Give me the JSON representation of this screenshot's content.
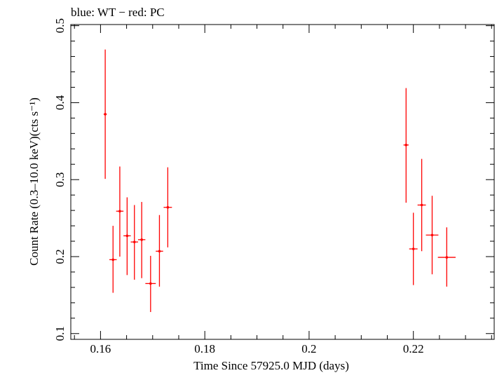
{
  "chart_data": {
    "type": "scatter",
    "title": "blue: WT − red: PC",
    "xlabel": "Time Since 57925.0 MJD (days)",
    "ylabel": "Count Rate (0.3–10.0 keV)(cts s⁻¹)",
    "xlim": [
      0.1543,
      0.2355
    ],
    "ylim": [
      0.0925,
      0.5015
    ],
    "x_ticks": [
      0.16,
      0.18,
      0.2,
      0.22
    ],
    "x_tick_labels": [
      "0.16",
      "0.18",
      "0.2",
      "0.22"
    ],
    "y_ticks": [
      0.1,
      0.2,
      0.3,
      0.4,
      0.5
    ],
    "y_tick_labels": [
      "0.1",
      "0.2",
      "0.3",
      "0.4",
      "0.5"
    ],
    "grid": false,
    "series": [
      {
        "color": "#ff0000",
        "points": [
          {
            "x": 0.1609,
            "y": 0.385,
            "xerr": 0.0003,
            "ylo": 0.301,
            "yhi": 0.469
          },
          {
            "x": 0.1624,
            "y": 0.196,
            "xerr": 0.0007,
            "ylo": 0.153,
            "yhi": 0.24
          },
          {
            "x": 0.1637,
            "y": 0.259,
            "xerr": 0.0007,
            "ylo": 0.2,
            "yhi": 0.317
          },
          {
            "x": 0.1651,
            "y": 0.227,
            "xerr": 0.0007,
            "ylo": 0.176,
            "yhi": 0.277
          },
          {
            "x": 0.1665,
            "y": 0.219,
            "xerr": 0.0007,
            "ylo": 0.17,
            "yhi": 0.267
          },
          {
            "x": 0.1679,
            "y": 0.222,
            "xerr": 0.0007,
            "ylo": 0.172,
            "yhi": 0.271
          },
          {
            "x": 0.1696,
            "y": 0.165,
            "xerr": 0.001,
            "ylo": 0.128,
            "yhi": 0.201
          },
          {
            "x": 0.1713,
            "y": 0.207,
            "xerr": 0.0007,
            "ylo": 0.161,
            "yhi": 0.254
          },
          {
            "x": 0.1729,
            "y": 0.264,
            "xerr": 0.0008,
            "ylo": 0.212,
            "yhi": 0.316
          },
          {
            "x": 0.2186,
            "y": 0.345,
            "xerr": 0.0005,
            "ylo": 0.27,
            "yhi": 0.419
          },
          {
            "x": 0.22,
            "y": 0.21,
            "xerr": 0.0008,
            "ylo": 0.163,
            "yhi": 0.257
          },
          {
            "x": 0.2216,
            "y": 0.267,
            "xerr": 0.0008,
            "ylo": 0.207,
            "yhi": 0.327
          },
          {
            "x": 0.2236,
            "y": 0.228,
            "xerr": 0.0012,
            "ylo": 0.177,
            "yhi": 0.279
          },
          {
            "x": 0.2264,
            "y": 0.199,
            "xerr": 0.0017,
            "ylo": 0.161,
            "yhi": 0.238
          }
        ]
      }
    ]
  }
}
